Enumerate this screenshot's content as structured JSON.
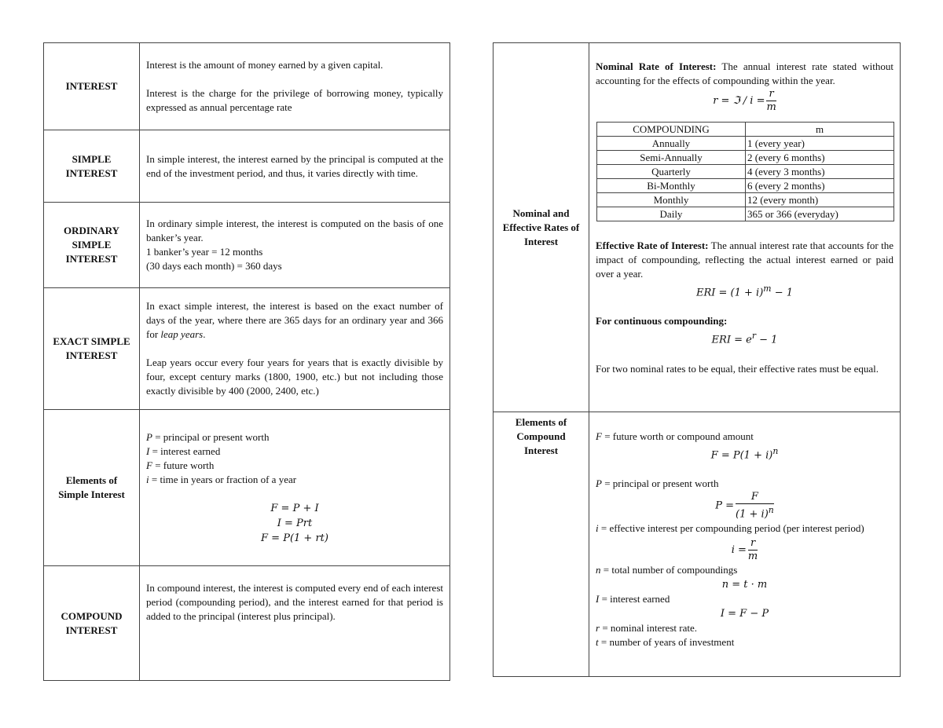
{
  "left": [
    {
      "label": "INTEREST",
      "paras": [
        "Interest is the amount of money earned by a given capital.",
        "Interest is the charge for the privilege of borrowing money, typically expressed as annual percentage rate"
      ]
    },
    {
      "label": "SIMPLE INTEREST",
      "paras": [
        "In simple interest, the interest earned by the principal is computed at the end of the investment period, and thus, it varies directly with time."
      ]
    },
    {
      "label": "ORDINARY SIMPLE INTEREST",
      "lines": [
        "In ordinary simple interest, the interest is computed on the basis of one banker’s year.",
        "1 banker’s year = 12 months",
        "(30 days each month) = 360 days"
      ]
    },
    {
      "label": "EXACT SIMPLE INTEREST",
      "p1": "In exact simple interest, the interest is based on the exact number of days of the year, where there are 365 days for an ordinary year and 366 for",
      "p1_italic": "leap years",
      "p1_end": ".",
      "p2": "Leap years occur every four years for years that is exactly divisible by four, except century marks (1800, 1900, etc.) but not including those exactly divisible by 400 (2000, 2400, etc.)"
    },
    {
      "label": "Elements of Simple Interest",
      "defs": [
        {
          "v": "P",
          "t": " = principal or present worth"
        },
        {
          "v": "I",
          "t": " = interest earned"
        },
        {
          "v": "F",
          "t": " = future worth"
        },
        {
          "v": "i",
          "t": " = time in years or fraction of a year"
        }
      ],
      "formulas": [
        "F = P + I",
        "I = Prt",
        "F = P(1 + rt)"
      ]
    },
    {
      "label": "COMPOUND INTEREST",
      "paras": [
        "In compound interest, the interest is computed every end of each interest period (compounding period), and the interest earned for that period is added to the principal (interest plus principal)."
      ]
    }
  ],
  "right": {
    "nominal": {
      "label": "Nominal and Effective Rates of Interest",
      "nominal_title": "Nominal Rate of Interest:",
      "nominal_text": " The annual interest rate stated without accounting for the effects of compounding within the year.",
      "nominal_formula": {
        "lhs": "r = ℑ / i =",
        "num": "r",
        "den": "m"
      },
      "table_headers": [
        "COMPOUNDING",
        "m"
      ],
      "table_rows": [
        [
          "Annually",
          "1 (every year)"
        ],
        [
          "Semi-Annually",
          "2 (every 6 months)"
        ],
        [
          "Quarterly",
          "4 (every 3 months)"
        ],
        [
          "Bi-Monthly",
          "6 (every 2 months)"
        ],
        [
          "Monthly",
          "12 (every month)"
        ],
        [
          "Daily",
          "365 or 366 (everyday)"
        ]
      ],
      "effective_title": "Effective Rate of Interest:",
      "effective_text": " The annual interest rate that accounts for the impact of compounding, reflecting the actual interest earned or paid over a year.",
      "effective_formula": {
        "base": "ERI = (1 + i)",
        "sup": "m",
        "tail": " − 1"
      },
      "continuous_title": "For continuous compounding:",
      "continuous_formula": {
        "base": "ERI = e",
        "sup": "r",
        "tail": " − 1"
      },
      "note": "For two nominal rates to be equal, their effective rates must be equal."
    },
    "compound": {
      "label": "Elements of Compound Interest",
      "F_def": {
        "v": "F",
        "t": " = future worth or compound amount"
      },
      "F_formula": {
        "base": "F = P(1 + i)",
        "sup": "n"
      },
      "P_def": {
        "v": "P",
        "t": " = principal or present worth"
      },
      "P_formula": {
        "lhs": "P =",
        "num": "F",
        "den": "(1 + i)",
        "den_sup": "n"
      },
      "i_def": {
        "v": "i",
        "t": " = effective interest per compounding period (per interest period)"
      },
      "i_formula": {
        "lhs": "i =",
        "num": "r",
        "den": "m"
      },
      "n_def": {
        "v": "n",
        "t": " = total number of compoundings"
      },
      "n_formula": "n = t · m",
      "I_def": {
        "v": "I",
        "t": " = interest earned"
      },
      "I_formula": "I = F − P",
      "r_def": {
        "v": "r",
        "t": " = nominal interest rate."
      },
      "t_def": {
        "v": "t",
        "t": " = number of years of investment"
      }
    }
  }
}
